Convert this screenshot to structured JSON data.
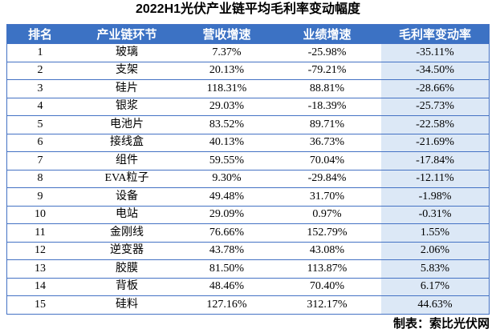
{
  "chart_data": {
    "type": "table",
    "title": "2022H1光伏产业链平均毛利率变动幅度",
    "columns": [
      "排名",
      "产业链环节",
      "营收增速",
      "业绩增速",
      "毛利率变动率"
    ],
    "rows": [
      [
        "1",
        "玻璃",
        "7.37%",
        "-25.98%",
        "-35.11%"
      ],
      [
        "2",
        "支架",
        "20.13%",
        "-79.21%",
        "-34.50%"
      ],
      [
        "3",
        "硅片",
        "118.31%",
        "88.81%",
        "-28.66%"
      ],
      [
        "4",
        "银浆",
        "29.03%",
        "-18.39%",
        "-25.73%"
      ],
      [
        "5",
        "电池片",
        "83.52%",
        "89.71%",
        "-22.58%"
      ],
      [
        "6",
        "接线盒",
        "40.13%",
        "36.73%",
        "-21.69%"
      ],
      [
        "7",
        "组件",
        "59.55%",
        "70.04%",
        "-17.84%"
      ],
      [
        "8",
        "EVA粒子",
        "9.30%",
        "-29.84%",
        "-12.11%"
      ],
      [
        "9",
        "设备",
        "49.48%",
        "31.70%",
        "-1.98%"
      ],
      [
        "10",
        "电站",
        "29.09%",
        "0.97%",
        "-0.31%"
      ],
      [
        "11",
        "金刚线",
        "76.66%",
        "152.79%",
        "1.55%"
      ],
      [
        "12",
        "逆变器",
        "43.78%",
        "43.08%",
        "2.06%"
      ],
      [
        "13",
        "胶膜",
        "81.50%",
        "113.87%",
        "5.83%"
      ],
      [
        "14",
        "背板",
        "48.46%",
        "70.40%",
        "6.17%"
      ],
      [
        "15",
        "硅料",
        "127.16%",
        "312.17%",
        "44.63%"
      ]
    ],
    "highlighted_column": "毛利率变动率",
    "layout": {
      "grid": "horizontal-rules-only",
      "header_text_color": "#FFFFFF"
    }
  },
  "footer": {
    "credit": "制表：索比光伏网"
  },
  "colors": {
    "header_bg": "#3C72C4",
    "highlight_col_bg": "#DCE8F6",
    "border": "#4472C4",
    "title_color": "#000000"
  }
}
